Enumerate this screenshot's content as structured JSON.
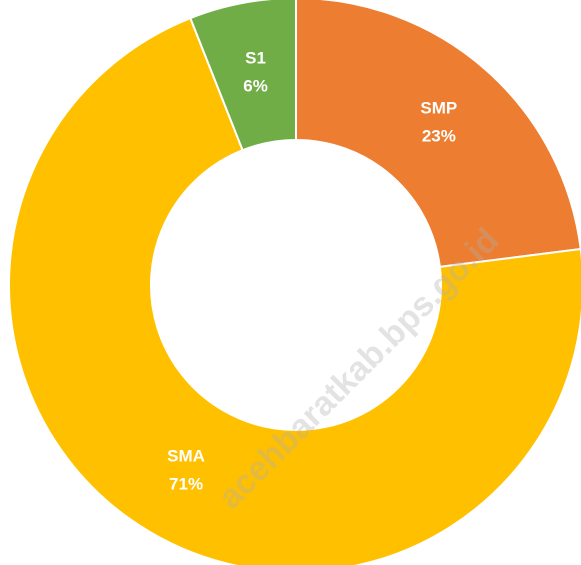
{
  "chart_data": {
    "type": "donut",
    "categories": [
      "SMP",
      "SMA",
      "S1"
    ],
    "values": [
      23,
      71,
      6
    ],
    "value_labels": [
      "23%",
      "71%",
      "6%"
    ],
    "colors": [
      "#ED7D31",
      "#FFC000",
      "#70AD47"
    ],
    "watermark": "acehbaratkab.bps.go.id"
  }
}
